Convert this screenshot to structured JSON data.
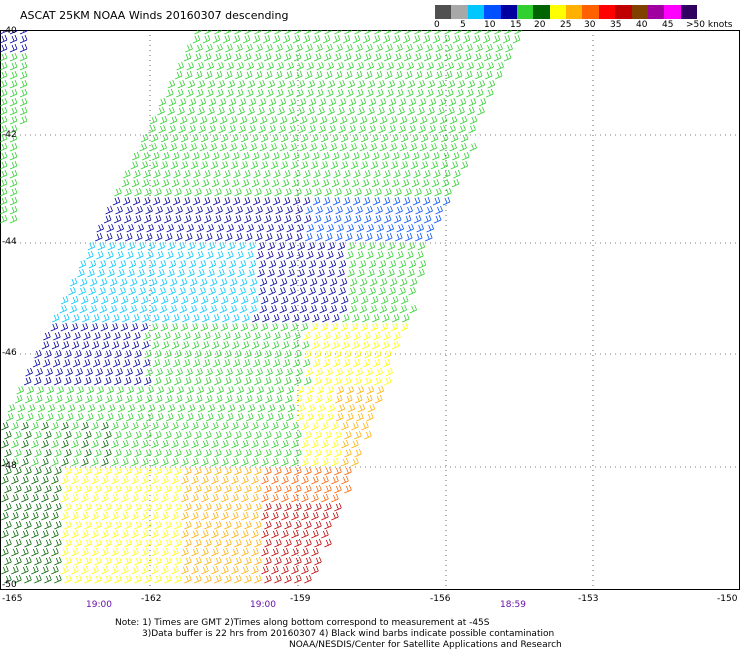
{
  "header": {
    "title": "ASCAT 25KM NOAA Winds 20160307 descending"
  },
  "legend": {
    "colors": [
      "#505050",
      "#a8a8a8",
      "#00c8ff",
      "#0050ff",
      "#0000a0",
      "#30d030",
      "#006400",
      "#ffff00",
      "#ffb000",
      "#ff6000",
      "#ff0000",
      "#c00000",
      "#804000",
      "#a000a0",
      "#ff00ff",
      "#300060"
    ],
    "labels": [
      "0",
      "5",
      "10",
      "15",
      "20",
      "25",
      "30",
      "35",
      "40",
      "45",
      ">50 knots"
    ]
  },
  "axes": {
    "lat_labels": [
      "-40",
      "-42",
      "-44",
      "-46",
      "-48",
      "-50"
    ],
    "lon_labels": [
      "-165",
      "-162",
      "-159",
      "-156",
      "-153",
      "-150"
    ],
    "time_labels": [
      "19:00",
      "19:00",
      "18:59"
    ]
  },
  "notes": {
    "line1": "Note: 1) Times are GMT 2)Times along bottom correspond to measurement at -45S",
    "line2": "3)Data buffer is 22 hrs from 20160307 4) Black wind barbs indicate possible contamination",
    "line3": "NOAA/NESDIS/Center for Satellite Applications and Research"
  }
}
